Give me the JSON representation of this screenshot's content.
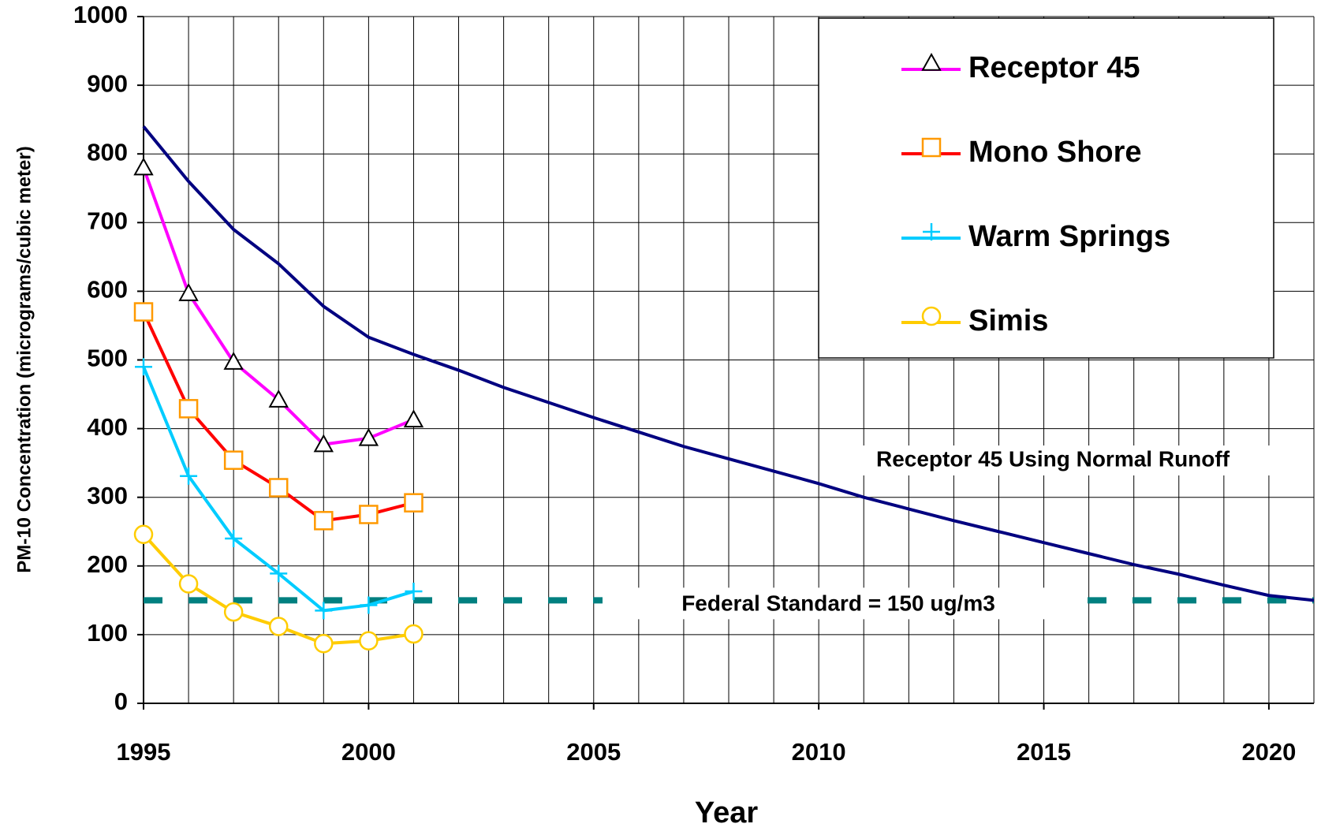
{
  "chart_data": {
    "type": "line",
    "xlabel": "Year",
    "ylabel": "PM-10 Concentration (micrograms/cubic meter)",
    "xlim": [
      1995,
      2021
    ],
    "ylim": [
      0,
      1000
    ],
    "xticks": [
      1995,
      2000,
      2005,
      2010,
      2015,
      2020
    ],
    "xminorticks": [
      1995,
      1996,
      1997,
      1998,
      1999,
      2000,
      2001,
      2002,
      2003,
      2004,
      2005,
      2006,
      2007,
      2008,
      2009,
      2010,
      2011,
      2012,
      2013,
      2014,
      2015,
      2016,
      2017,
      2018,
      2019,
      2020,
      2021
    ],
    "yticks": [
      0,
      100,
      200,
      300,
      400,
      500,
      600,
      700,
      800,
      900,
      1000
    ],
    "grid": true,
    "legend": "upper right",
    "series": [
      {
        "name": "Receptor 45",
        "color": "#ff00ff",
        "marker": "triangle",
        "legend": true,
        "x": [
          1995,
          1996,
          1997,
          1998,
          1999,
          2000,
          2001
        ],
        "values": [
          780,
          597,
          497,
          442,
          377,
          386,
          413
        ]
      },
      {
        "name": "Mono Shore",
        "color": "#ff0000",
        "marker": "square",
        "markercolor": "#ff9900",
        "legend": true,
        "x": [
          1995,
          1996,
          1997,
          1998,
          1999,
          2000,
          2001
        ],
        "values": [
          570,
          429,
          354,
          314,
          266,
          275,
          292
        ]
      },
      {
        "name": "Warm Springs",
        "color": "#00ccff",
        "marker": "plus",
        "legend": true,
        "x": [
          1995,
          1996,
          1997,
          1998,
          1999,
          2000,
          2001
        ],
        "values": [
          490,
          331,
          240,
          189,
          135,
          143,
          163
        ]
      },
      {
        "name": "Simis",
        "color": "#ffcc00",
        "marker": "circle",
        "legend": true,
        "x": [
          1995,
          1996,
          1997,
          1998,
          1999,
          2000,
          2001
        ],
        "values": [
          246,
          174,
          133,
          112,
          87,
          91,
          101
        ]
      },
      {
        "name": "Receptor 45 Using Normal Runoff",
        "color": "#000080",
        "marker": "none",
        "legend": false,
        "x": [
          1995,
          1996,
          1997,
          1998,
          1999,
          2000,
          2001,
          2002,
          2003,
          2004,
          2005,
          2006,
          2007,
          2008,
          2009,
          2010,
          2011,
          2012,
          2013,
          2014,
          2015,
          2016,
          2017,
          2018,
          2019,
          2020,
          2021
        ],
        "values": [
          840,
          760,
          690,
          640,
          578,
          533,
          508,
          485,
          460,
          438,
          416,
          395,
          374,
          356,
          338,
          320,
          300,
          283,
          266,
          250,
          234,
          218,
          202,
          188,
          172,
          157,
          150
        ]
      }
    ],
    "reference_line": {
      "value": 150,
      "label": "Federal Standard = 150 ug/m3",
      "color": "#008080"
    }
  }
}
